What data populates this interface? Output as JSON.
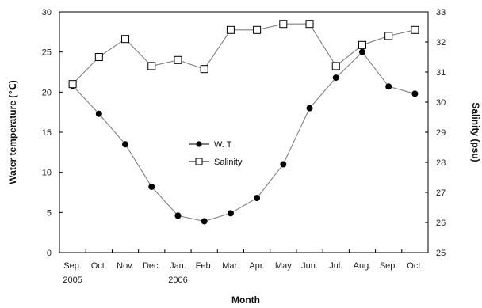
{
  "chart_data": {
    "type": "line",
    "categories": [
      "Sep.",
      "Oct.",
      "Nov.",
      "Dec.",
      "Jan.",
      "Feb.",
      "Mar.",
      "Apr.",
      "May",
      "Jun.",
      "Jul.",
      "Aug.",
      "Sep.",
      "Oct."
    ],
    "year_labels": [
      {
        "index": 0,
        "label": "2005"
      },
      {
        "index": 4,
        "label": "2006"
      }
    ],
    "series": [
      {
        "name": "W. T",
        "axis": "left",
        "marker": "filled-circle",
        "color": "#000000",
        "values": [
          20.8,
          17.3,
          13.5,
          8.2,
          4.6,
          3.9,
          4.9,
          6.8,
          11.0,
          18.0,
          21.8,
          25.0,
          20.7,
          19.8
        ]
      },
      {
        "name": "Salinity",
        "axis": "right",
        "marker": "open-square",
        "color": "#000000",
        "values": [
          30.6,
          31.5,
          32.1,
          31.2,
          31.4,
          31.1,
          32.4,
          32.4,
          32.6,
          32.6,
          31.2,
          31.9,
          32.2,
          32.4
        ]
      }
    ],
    "xlabel": "Month",
    "ylabel": "Water temperature (℃)",
    "y2label": "Salinity (psu)",
    "ylim": [
      0,
      30
    ],
    "yticks": [
      0,
      5,
      10,
      15,
      20,
      25,
      30
    ],
    "y2lim": [
      25,
      33
    ],
    "y2ticks": [
      25,
      26,
      27,
      28,
      29,
      30,
      31,
      32,
      33
    ],
    "grid": false,
    "legend": "center",
    "line_color": "#808080"
  }
}
